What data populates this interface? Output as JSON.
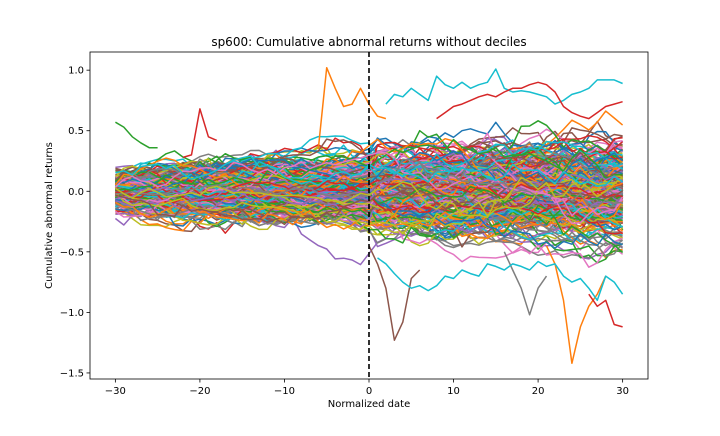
{
  "chart_data": {
    "type": "line",
    "title": "sp600: Cumulative abnormal returns without deciles",
    "xlabel": "Normalized date",
    "ylabel": "Cumulative abnormal returns",
    "xlim": [
      -33,
      33
    ],
    "ylim": [
      -1.55,
      1.15
    ],
    "xticks": [
      -30,
      -20,
      -10,
      0,
      10,
      20,
      30
    ],
    "xtick_labels": [
      "−30",
      "−20",
      "−10",
      "0",
      "10",
      "20",
      "30"
    ],
    "yticks": [
      -1.5,
      -1.0,
      -0.5,
      0.0,
      0.5,
      1.0
    ],
    "ytick_labels": [
      "−1.5",
      "−1.0",
      "−0.5",
      "0.0",
      "0.5",
      "1.0"
    ],
    "grid": false,
    "legend": "none",
    "event_line": {
      "x": 0,
      "style": "dashed",
      "color": "#000000"
    },
    "x_range": [
      -30,
      30
    ],
    "series_count": 400,
    "palette": [
      "#1f77b4",
      "#ff7f0e",
      "#2ca02c",
      "#d62728",
      "#9467bd",
      "#8c564b",
      "#e377c2",
      "#7f7f7f",
      "#bcbd22",
      "#17becf"
    ],
    "highlighted_series": [
      {
        "color": "#ff7f0e",
        "x": [
          -6,
          -5,
          -4,
          -3,
          -2,
          -1,
          0,
          1,
          2
        ],
        "values": [
          0.35,
          1.02,
          0.85,
          0.7,
          0.72,
          0.85,
          0.72,
          0.62,
          0.6
        ]
      },
      {
        "color": "#d62728",
        "x": [
          -22,
          -21,
          -20,
          -19,
          -18
        ],
        "values": [
          0.28,
          0.3,
          0.68,
          0.45,
          0.42
        ]
      },
      {
        "color": "#2ca02c",
        "x": [
          -30,
          -29,
          -28,
          -27,
          -26,
          -25
        ],
        "values": [
          0.57,
          0.53,
          0.45,
          0.4,
          0.36,
          0.36
        ]
      },
      {
        "color": "#8c564b",
        "x": [
          0,
          1,
          2,
          3,
          4,
          5,
          6
        ],
        "values": [
          -0.45,
          -0.6,
          -0.8,
          -1.23,
          -1.08,
          -0.72,
          -0.65
        ]
      },
      {
        "color": "#ff7f0e",
        "x": [
          21,
          22,
          23,
          24,
          25,
          26,
          27,
          28
        ],
        "values": [
          -0.45,
          -0.6,
          -0.9,
          -1.42,
          -1.12,
          -0.95,
          -0.85,
          -0.7
        ]
      },
      {
        "color": "#d62728",
        "x": [
          26,
          27,
          28,
          29,
          30
        ],
        "values": [
          -0.85,
          -0.95,
          -0.9,
          -1.1,
          -1.12
        ]
      },
      {
        "color": "#7f7f7f",
        "x": [
          16,
          17,
          18,
          19,
          20,
          21
        ],
        "values": [
          -0.5,
          -0.65,
          -0.8,
          -1.02,
          -0.8,
          -0.7
        ]
      },
      {
        "color": "#17becf",
        "x": [
          2,
          3,
          4,
          5,
          6,
          7,
          8,
          9,
          10,
          11,
          12,
          13,
          14,
          15,
          16,
          17,
          18,
          19,
          20,
          21,
          22,
          23,
          24,
          25,
          26,
          27,
          28,
          29,
          30
        ],
        "values": [
          0.72,
          0.8,
          0.78,
          0.85,
          0.8,
          0.75,
          0.95,
          0.88,
          0.85,
          0.9,
          0.85,
          0.88,
          0.9,
          1.01,
          0.85,
          0.82,
          0.83,
          0.82,
          0.8,
          0.78,
          0.72,
          0.75,
          0.8,
          0.82,
          0.85,
          0.92,
          0.92,
          0.92,
          0.89
        ]
      },
      {
        "color": "#17becf",
        "x": [
          1,
          2,
          3,
          4,
          5,
          6,
          7,
          8,
          9,
          10,
          11,
          12,
          13,
          14,
          15,
          16,
          17,
          18,
          19,
          20,
          21,
          22,
          23,
          24,
          25,
          26,
          27,
          28,
          29,
          30
        ],
        "values": [
          -0.55,
          -0.6,
          -0.68,
          -0.75,
          -0.8,
          -0.78,
          -0.82,
          -0.78,
          -0.7,
          -0.72,
          -0.65,
          -0.68,
          -0.7,
          -0.6,
          -0.62,
          -0.65,
          -0.6,
          -0.62,
          -0.65,
          -0.58,
          -0.62,
          -0.6,
          -0.7,
          -0.75,
          -0.72,
          -0.8,
          -0.9,
          -0.7,
          -0.75,
          -0.85
        ]
      },
      {
        "color": "#d62728",
        "x": [
          8,
          9,
          10,
          11,
          12,
          13,
          14,
          15,
          16,
          17,
          18,
          19,
          20,
          21,
          22,
          23,
          24,
          25,
          26,
          27,
          28,
          29,
          30
        ],
        "values": [
          0.6,
          0.65,
          0.7,
          0.72,
          0.75,
          0.78,
          0.8,
          0.78,
          0.82,
          0.85,
          0.85,
          0.88,
          0.9,
          0.88,
          0.82,
          0.7,
          0.65,
          0.62,
          0.6,
          0.65,
          0.7,
          0.72,
          0.74
        ]
      }
    ]
  }
}
